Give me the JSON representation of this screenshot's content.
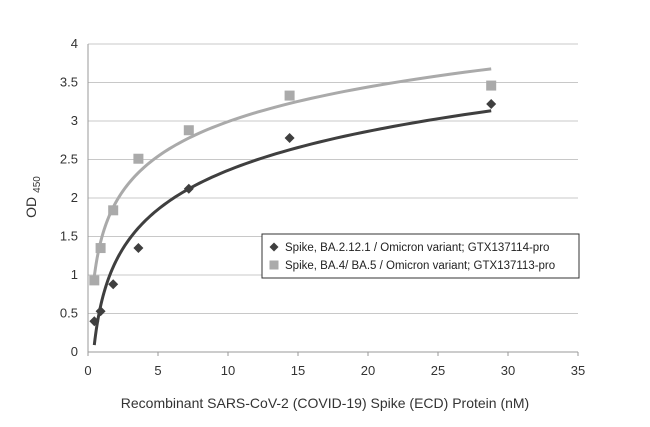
{
  "chart_data": {
    "type": "scatter",
    "xlabel": "Recombinant SARS-CoV-2 (COVID-19) Spike (ECD) Protein (nM)",
    "ylabel": "OD",
    "ylabel_sub": "450",
    "xlim": [
      0,
      35
    ],
    "ylim": [
      0,
      4
    ],
    "xticks": [
      0,
      5,
      10,
      15,
      20,
      25,
      30,
      35
    ],
    "yticks": [
      0,
      0.5,
      1,
      1.5,
      2,
      2.5,
      3,
      3.5,
      4
    ],
    "grid": true,
    "legend_position": "center-right",
    "series": [
      {
        "name": "Spike, BA.2.12.1 / Omicron variant; GTX137114-pro",
        "marker": "diamond",
        "color": "#3f3f3f",
        "x": [
          0.45,
          0.9,
          1.8,
          3.6,
          7.2,
          14.4,
          28.8
        ],
        "y": [
          0.4,
          0.53,
          0.88,
          1.35,
          2.12,
          2.78,
          3.22
        ],
        "trendline": {
          "type": "log",
          "color": "#3f3f3f"
        }
      },
      {
        "name": "Spike, BA.4/ BA.5 / Omicron variant; GTX137113-pro",
        "marker": "square",
        "color": "#aaaaaa",
        "x": [
          0.45,
          0.9,
          1.8,
          3.6,
          7.2,
          14.4,
          28.8
        ],
        "y": [
          0.93,
          1.35,
          1.84,
          2.51,
          2.88,
          3.33,
          3.46
        ],
        "trendline": {
          "type": "log",
          "color": "#aaaaaa"
        }
      }
    ]
  }
}
